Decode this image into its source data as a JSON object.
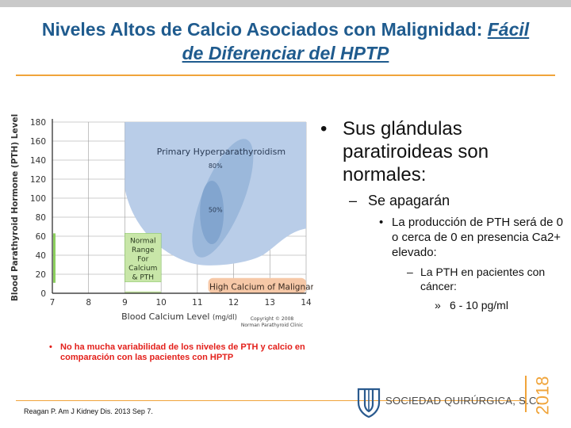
{
  "header": {
    "title_main": "Niveles Altos de Calcio Asociados con Malignidad: ",
    "title_em_1": "Fácil",
    "title_em_2": "de Diferenciar del HPTP"
  },
  "colors": {
    "title": "#1f5b8e",
    "accent": "#f0a43a",
    "region_primary": "#b9cde8",
    "region_inner": "#8fafd6",
    "region_core": "#7ca0cc",
    "normal_box": "#c8e6a8",
    "malignancy": "#f6c8a7",
    "note": "#e3201b"
  },
  "chart_data": {
    "type": "diagram",
    "xlabel": "Blood Calcium Level",
    "xlabel_unit": "(mg/dl)",
    "ylabel": "Blood Parathyroid Hormone  (PTH) Level",
    "xlim": [
      7,
      14
    ],
    "ylim": [
      0,
      180
    ],
    "x_ticks": [
      7,
      8,
      9,
      10,
      11,
      12,
      13,
      14
    ],
    "y_ticks": [
      0,
      20,
      40,
      60,
      80,
      100,
      120,
      140,
      160,
      180
    ],
    "regions": [
      {
        "name": "Primary Hyperparathyroidism",
        "label": "Primary Hyperparathyroidism"
      },
      {
        "label": "80%"
      },
      {
        "label": "50%"
      },
      {
        "name": "Normal Range For Calcium & PTH",
        "lines": [
          "Normal",
          "Range",
          "For",
          "Calcium",
          "& PTH"
        ],
        "x": [
          9,
          10
        ],
        "y": [
          0,
          60
        ]
      },
      {
        "name": "High Calcium of Malignancy",
        "label": "High Calcium of Malignancy",
        "x": [
          11.3,
          14
        ],
        "y": [
          0,
          16
        ]
      }
    ],
    "copyright": [
      "Copyright © 2008",
      "Norman Parathyroid Clinic"
    ]
  },
  "bullets": {
    "b1": "Sus glándulas paratiroideas son normales:",
    "b2": "Se apagarán",
    "b3": "La producción de PTH será de 0 o cerca de 0 en presencia Ca2+ elevado:",
    "b4": "La PTH en pacientes con cáncer:",
    "b5": "6 - 10 pg/ml",
    "m1": "•",
    "m2": "–",
    "m3": "•",
    "m4": "–",
    "m5": "»"
  },
  "note": {
    "marker": "•",
    "text": "No ha mucha variabilidad de los niveles de PTH y calcio en comparación con las pacientes con HPTP"
  },
  "footer": {
    "reference": "Reagan P. Am J Kidney Dis. 2013 Sep 7.",
    "brand": "SOCIEDAD QUIRÚRGICA, S.C.",
    "year": "2018"
  }
}
